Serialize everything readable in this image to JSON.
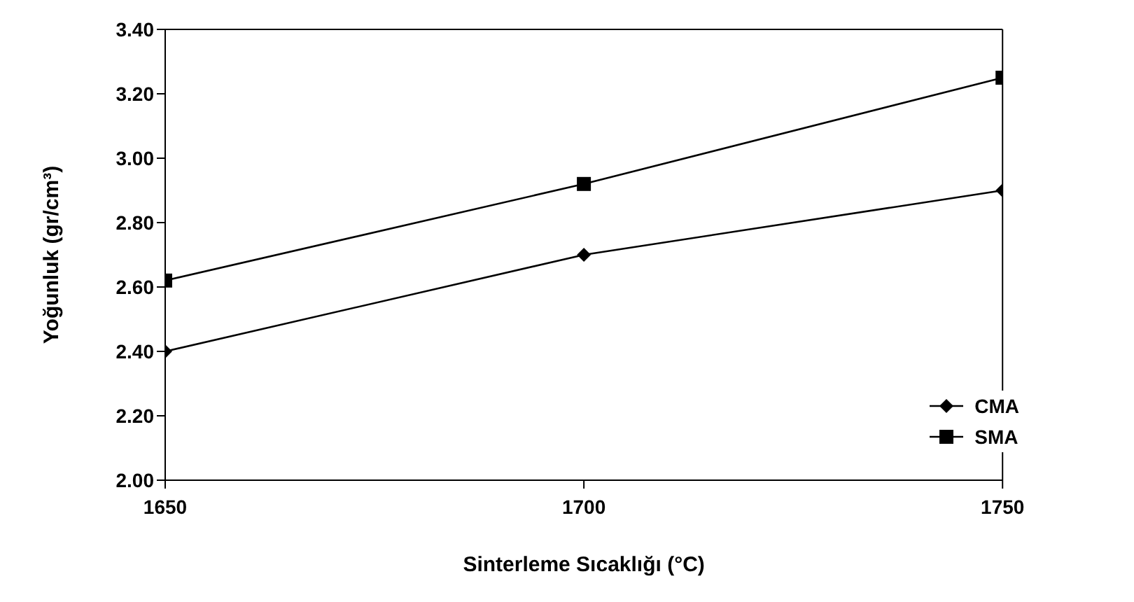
{
  "chart_data": {
    "type": "line",
    "xlabel": "Sinterleme Sıcaklığı (°C)",
    "ylabel": "Yoğunluk (gr/cm³)",
    "x": [
      1650,
      1700,
      1750
    ],
    "series": [
      {
        "name": "CMA",
        "color": "#000000",
        "marker": "diamond",
        "values": [
          2.4,
          2.7,
          2.9
        ]
      },
      {
        "name": "SMA",
        "color": "#000000",
        "marker": "square",
        "values": [
          2.62,
          2.92,
          3.25
        ]
      }
    ],
    "xlim": [
      1650,
      1750
    ],
    "xticks": [
      1650,
      1700,
      1750
    ],
    "ylim": [
      2,
      3.4
    ],
    "yticks": [
      {
        "value": 2,
        "label": "2.00"
      },
      {
        "value": 2.2,
        "label": "2.20"
      },
      {
        "value": 2.4,
        "label": "2.40"
      },
      {
        "value": 2.6,
        "label": "2.60"
      },
      {
        "value": 2.8,
        "label": "2.80"
      },
      {
        "value": 3,
        "label": "3.00"
      },
      {
        "value": 3.2,
        "label": "3.20"
      },
      {
        "value": 3.4,
        "label": "3.40"
      }
    ],
    "grid": false,
    "legend": "bottom right",
    "line_style": "solid"
  }
}
